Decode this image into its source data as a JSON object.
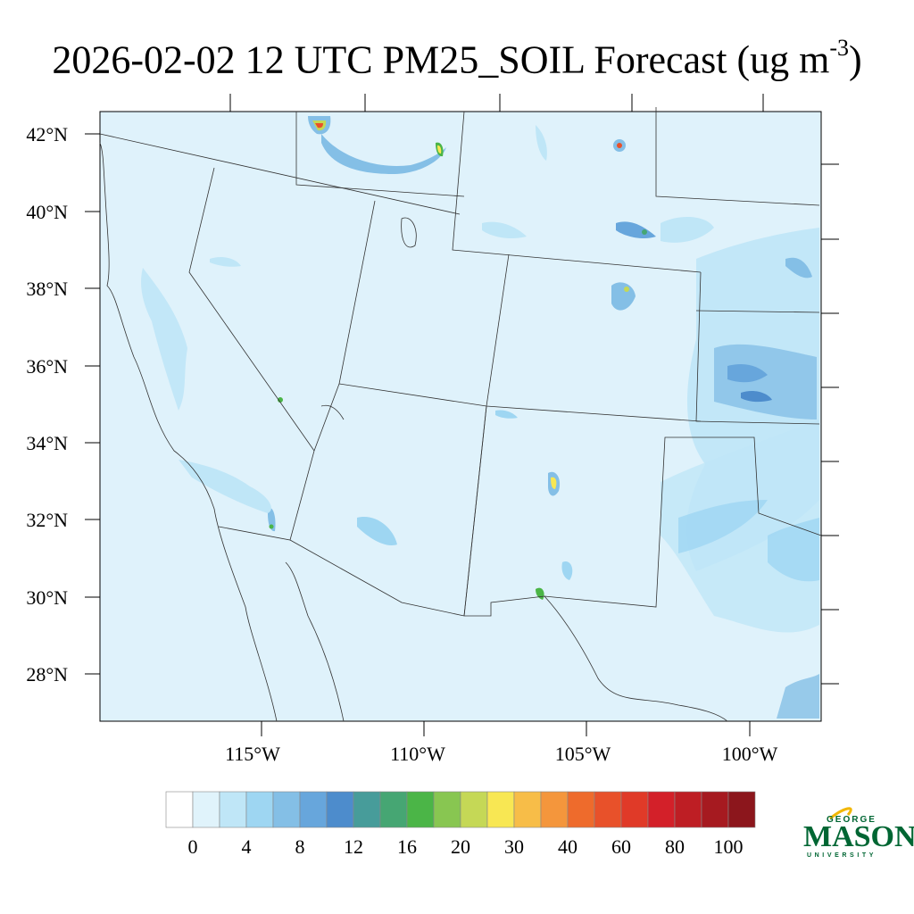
{
  "title": {
    "main": "2026-02-02 12 UTC PM25_SOIL Forecast (ug m",
    "exponent": "-3",
    "close": ")"
  },
  "map": {
    "lat_labels": [
      "42°N",
      "40°N",
      "38°N",
      "36°N",
      "34°N",
      "32°N",
      "30°N",
      "28°N"
    ],
    "lon_labels": [
      "115°W",
      "110°W",
      "105°W",
      "100°W"
    ],
    "background_color": "#dff2fb",
    "border_color": "#333333"
  },
  "colorbar": {
    "colors": [
      "#ffffff",
      "#e0f3fb",
      "#bfe6f7",
      "#9ed6f2",
      "#84bfe6",
      "#67a6dc",
      "#4d8ccc",
      "#479c9a",
      "#46a673",
      "#4bb547",
      "#88c651",
      "#c5d856",
      "#f8e753",
      "#f7bd48",
      "#f4963c",
      "#ee6b2c",
      "#e8512a",
      "#e03a28",
      "#d32029",
      "#be1e24",
      "#a61a20",
      "#8c161c"
    ],
    "labels": [
      "0",
      "4",
      "8",
      "12",
      "16",
      "20",
      "30",
      "40",
      "60",
      "80",
      "100"
    ]
  },
  "logo": {
    "line1": "GEORGE",
    "line2": "MASON",
    "line3": "UNIVERSITY",
    "color": "#006633",
    "accent": "#f2b705"
  }
}
